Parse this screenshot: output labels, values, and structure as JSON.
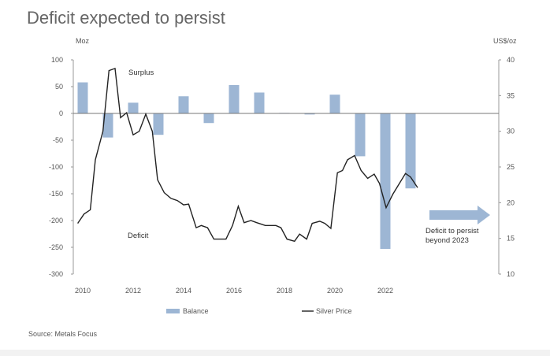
{
  "chart_data": {
    "type": "bar+line",
    "title": "Deficit expected to persist",
    "left_axis": {
      "label": "Moz",
      "ylim": [
        -300,
        100
      ],
      "ticks": [
        100,
        50,
        0,
        -50,
        -100,
        -150,
        -200,
        -250,
        -300
      ]
    },
    "right_axis": {
      "label": "US$/oz",
      "ylim": [
        10,
        40
      ],
      "ticks": [
        40,
        35,
        30,
        25,
        20,
        15,
        10
      ]
    },
    "x_ticks": [
      "2010",
      "2012",
      "2014",
      "2016",
      "2018",
      "2020",
      "2022"
    ],
    "series": [
      {
        "name": "Balance",
        "type": "bar",
        "axis": "left",
        "color": "#9db6d4",
        "x": [
          2010,
          2011,
          2012,
          2013,
          2014,
          2015,
          2016,
          2017,
          2018,
          2019,
          2020,
          2021,
          2022,
          2023
        ],
        "values": [
          58,
          -45,
          20,
          -40,
          32,
          -18,
          53,
          39,
          1,
          -2,
          35,
          -80,
          -253,
          -140
        ]
      },
      {
        "name": "Silver Price",
        "type": "line",
        "axis": "right",
        "color": "#222222",
        "x": [
          2009.8,
          2010.05,
          2010.3,
          2010.5,
          2010.8,
          2011.04,
          2011.28,
          2011.5,
          2011.74,
          2012.0,
          2012.24,
          2012.5,
          2012.76,
          2012.97,
          2013.23,
          2013.5,
          2013.75,
          2014.0,
          2014.2,
          2014.5,
          2014.7,
          2014.95,
          2015.2,
          2015.68,
          2015.94,
          2016.17,
          2016.4,
          2016.67,
          2016.9,
          2017.24,
          2017.66,
          2017.86,
          2018.1,
          2018.4,
          2018.6,
          2018.88,
          2019.1,
          2019.4,
          2019.6,
          2019.84,
          2020.1,
          2020.3,
          2020.5,
          2020.78,
          2021.04,
          2021.3,
          2021.56,
          2021.77,
          2022.03,
          2022.3,
          2022.56,
          2022.8,
          2023.0,
          2023.28
        ],
        "values": [
          17.1,
          18.4,
          19.0,
          26.0,
          30.0,
          38.5,
          38.8,
          31.9,
          32.6,
          29.5,
          30.0,
          32.4,
          30.0,
          23.2,
          21.4,
          20.6,
          20.3,
          19.7,
          19.8,
          16.5,
          16.8,
          16.5,
          14.9,
          14.9,
          16.8,
          19.5,
          17.2,
          17.5,
          17.2,
          16.8,
          16.8,
          16.5,
          14.9,
          14.6,
          15.6,
          14.9,
          17.1,
          17.4,
          17.1,
          16.4,
          24.2,
          24.5,
          26.0,
          26.6,
          24.5,
          23.4,
          24.0,
          22.7,
          19.3,
          21.2,
          22.7,
          24.1,
          23.6,
          22.1
        ]
      }
    ],
    "annotations": {
      "surplus": "Surplus",
      "deficit": "Deficit",
      "arrow_text_line1": "Deficit to persist",
      "arrow_text_line2": "beyond 2023"
    },
    "legend": {
      "position": "bottom",
      "items": [
        "Balance",
        "Silver Price"
      ]
    },
    "source": "Source: Metals Focus",
    "grid": false
  }
}
